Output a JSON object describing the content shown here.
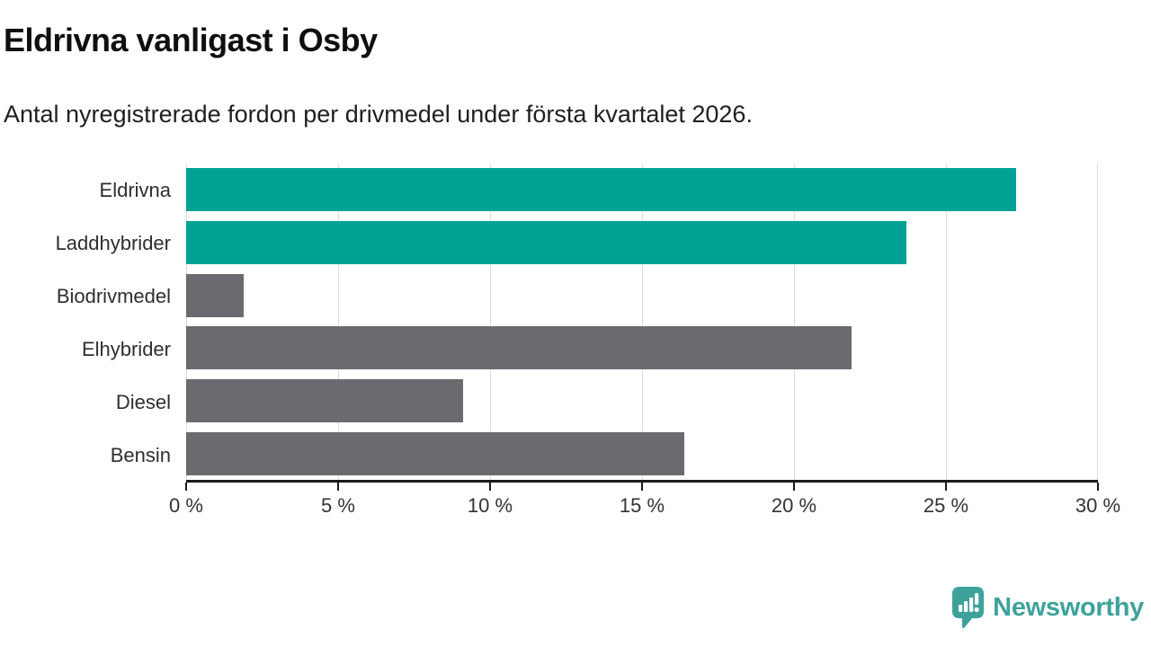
{
  "header": {
    "title": "Eldrivna vanligast i Osby",
    "subtitle": "Antal nyregistrerade fordon per drivmedel under första kvartalet 2026."
  },
  "chart_data": {
    "type": "bar",
    "orientation": "horizontal",
    "title": "Eldrivna vanligast i Osby",
    "subtitle": "Antal nyregistrerade fordon per drivmedel under första kvartalet 2026.",
    "categories": [
      "Eldrivna",
      "Laddhybrider",
      "Biodrivmedel",
      "Elhybrider",
      "Diesel",
      "Bensin"
    ],
    "values": [
      27.3,
      23.7,
      1.9,
      21.9,
      9.1,
      16.4
    ],
    "unit": "%",
    "xlabel": "",
    "ylabel": "",
    "xlim": [
      0,
      30
    ],
    "x_ticks": [
      0,
      5,
      10,
      15,
      20,
      25,
      30
    ],
    "x_tick_labels": [
      "0 %",
      "5 %",
      "10 %",
      "15 %",
      "20 %",
      "25 %",
      "30 %"
    ],
    "grid": "vertical-gridlines-on",
    "legend": "none",
    "highlight_color": "#00a296",
    "default_color": "#6a6a6f",
    "bar_colors": [
      "#00a296",
      "#00a296",
      "#6a6a6f",
      "#6a6a6f",
      "#6a6a6f",
      "#6a6a6f"
    ]
  },
  "footer": {
    "brand": "Newsworthy",
    "brand_color": "#3ea29b",
    "brand_icon": "newsworthy-speech-bubble-barchart-icon"
  }
}
